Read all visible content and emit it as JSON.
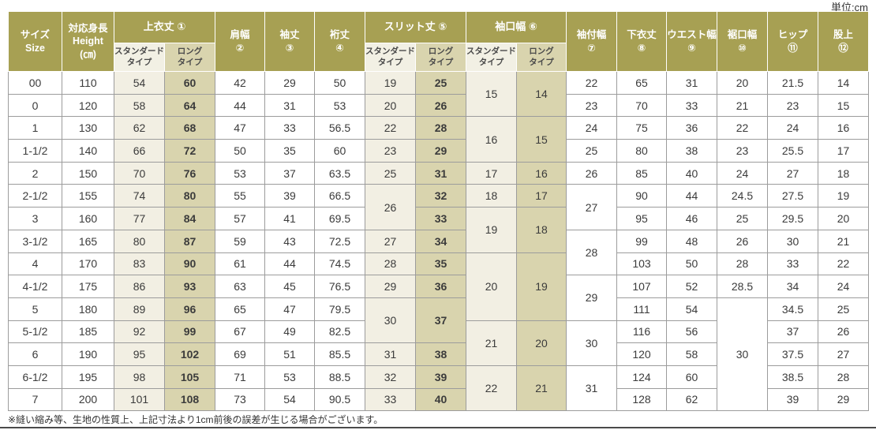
{
  "unit_label": "単位:cm",
  "footnote": "※縫い縮み等、生地の性質上、上記寸法より1cm前後の誤差が生じる場合がございます。",
  "colors": {
    "header_bg": "#a7a053",
    "header_text": "#ffffff",
    "standard_col_bg": "#f2efe3",
    "long_col_bg": "#d9d4ae",
    "body_border": "#9c9c9c",
    "body_text": "#3b3b3b"
  },
  "table": {
    "header": {
      "size": "サイズ\nSize",
      "height": "対応身長\nHeight\n(㎝)",
      "jacket": "上衣丈 ①",
      "shoulder": "肩幅\n②",
      "sleeve": "袖丈\n③",
      "yuki": "裄丈\n④",
      "slit": "スリット丈 ⑤",
      "cuff": "袖口幅 ⑥",
      "sodetsuke": "袖付幅\n⑦",
      "pants": "下衣丈\n⑧",
      "waist": "ウエスト幅\n⑨",
      "hem": "裾口幅\n⑩",
      "hip": "ヒップ\n⑪",
      "rise": "股上\n⑫",
      "sub_standard": "スタンダード\nタイプ",
      "sub_long": "ロング\nタイプ"
    },
    "columns": [
      "サイズ Size",
      "対応身長 Height(cm)",
      "上衣丈① スタンダードタイプ",
      "上衣丈① ロングタイプ",
      "肩幅②",
      "袖丈③",
      "裄丈④",
      "スリット丈⑤ スタンダードタイプ",
      "スリット丈⑤ ロングタイプ",
      "袖口幅⑥ スタンダードタイプ",
      "袖口幅⑥ ロングタイプ",
      "袖付幅⑦",
      "下衣丈⑧",
      "ウエスト幅⑨",
      "裾口幅⑩",
      "ヒップ⑪",
      "股上⑫"
    ],
    "rows": [
      [
        "00",
        "110",
        {
          "v": "54",
          "c": "std"
        },
        {
          "v": "60",
          "c": "longb"
        },
        "42",
        "29",
        "50",
        {
          "v": "19",
          "c": "std"
        },
        {
          "v": "25",
          "c": "longb"
        },
        {
          "v": "15",
          "c": "std",
          "rs": 2
        },
        {
          "v": "14",
          "c": "long",
          "rs": 2
        },
        "22",
        "65",
        "31",
        "20",
        "21.5",
        "14"
      ],
      [
        "0",
        "120",
        {
          "v": "58",
          "c": "std"
        },
        {
          "v": "64",
          "c": "longb"
        },
        "44",
        "31",
        "53",
        {
          "v": "20",
          "c": "std"
        },
        {
          "v": "26",
          "c": "longb"
        },
        "23",
        "70",
        "33",
        "21",
        "23",
        "15"
      ],
      [
        "1",
        "130",
        {
          "v": "62",
          "c": "std"
        },
        {
          "v": "68",
          "c": "longb"
        },
        "47",
        "33",
        "56.5",
        {
          "v": "22",
          "c": "std"
        },
        {
          "v": "28",
          "c": "longb"
        },
        {
          "v": "16",
          "c": "std",
          "rs": 2
        },
        {
          "v": "15",
          "c": "long",
          "rs": 2
        },
        "24",
        "75",
        "36",
        "22",
        "24",
        "16"
      ],
      [
        "1-1/2",
        "140",
        {
          "v": "66",
          "c": "std"
        },
        {
          "v": "72",
          "c": "longb"
        },
        "50",
        "35",
        "60",
        {
          "v": "23",
          "c": "std"
        },
        {
          "v": "29",
          "c": "longb"
        },
        "25",
        "80",
        "38",
        "23",
        "25.5",
        "17"
      ],
      [
        "2",
        "150",
        {
          "v": "70",
          "c": "std"
        },
        {
          "v": "76",
          "c": "longb"
        },
        "53",
        "37",
        "63.5",
        {
          "v": "25",
          "c": "std"
        },
        {
          "v": "31",
          "c": "longb"
        },
        {
          "v": "17",
          "c": "std"
        },
        {
          "v": "16",
          "c": "long"
        },
        "26",
        "85",
        "40",
        "24",
        "27",
        "18"
      ],
      [
        "2-1/2",
        "155",
        {
          "v": "74",
          "c": "std"
        },
        {
          "v": "80",
          "c": "longb"
        },
        "55",
        "39",
        "66.5",
        {
          "v": "26",
          "c": "std",
          "rs": 2
        },
        {
          "v": "32",
          "c": "longb"
        },
        {
          "v": "18",
          "c": "std"
        },
        {
          "v": "17",
          "c": "long"
        },
        {
          "v": "27",
          "rs": 2
        },
        "90",
        "44",
        "24.5",
        "27.5",
        "19"
      ],
      [
        "3",
        "160",
        {
          "v": "77",
          "c": "std"
        },
        {
          "v": "84",
          "c": "longb"
        },
        "57",
        "41",
        "69.5",
        {
          "v": "33",
          "c": "longb"
        },
        {
          "v": "19",
          "c": "std",
          "rs": 2
        },
        {
          "v": "18",
          "c": "long",
          "rs": 2
        },
        "95",
        "46",
        "25",
        "29.5",
        "20"
      ],
      [
        "3-1/2",
        "165",
        {
          "v": "80",
          "c": "std"
        },
        {
          "v": "87",
          "c": "longb"
        },
        "59",
        "43",
        "72.5",
        {
          "v": "27",
          "c": "std"
        },
        {
          "v": "34",
          "c": "longb"
        },
        {
          "v": "28",
          "rs": 2
        },
        "99",
        "48",
        "26",
        "30",
        "21"
      ],
      [
        "4",
        "170",
        {
          "v": "83",
          "c": "std"
        },
        {
          "v": "90",
          "c": "longb"
        },
        "61",
        "44",
        "74.5",
        {
          "v": "28",
          "c": "std"
        },
        {
          "v": "35",
          "c": "longb"
        },
        {
          "v": "20",
          "c": "std",
          "rs": 3
        },
        {
          "v": "19",
          "c": "long",
          "rs": 3
        },
        "103",
        "50",
        "28",
        "33",
        "22"
      ],
      [
        "4-1/2",
        "175",
        {
          "v": "86",
          "c": "std"
        },
        {
          "v": "93",
          "c": "longb"
        },
        "63",
        "45",
        "76.5",
        {
          "v": "29",
          "c": "std"
        },
        {
          "v": "36",
          "c": "longb"
        },
        {
          "v": "29",
          "rs": 2
        },
        "107",
        "52",
        "28.5",
        "34",
        "24"
      ],
      [
        "5",
        "180",
        {
          "v": "89",
          "c": "std"
        },
        {
          "v": "96",
          "c": "longb"
        },
        "65",
        "47",
        "79.5",
        {
          "v": "30",
          "c": "std",
          "rs": 2
        },
        {
          "v": "37",
          "c": "longb",
          "rs": 2
        },
        "111",
        "54",
        {
          "v": "30",
          "rs": 5
        },
        "34.5",
        "25"
      ],
      [
        "5-1/2",
        "185",
        {
          "v": "92",
          "c": "std"
        },
        {
          "v": "99",
          "c": "longb"
        },
        "67",
        "49",
        "82.5",
        {
          "v": "21",
          "c": "std",
          "rs": 2
        },
        {
          "v": "20",
          "c": "long",
          "rs": 2
        },
        {
          "v": "30",
          "rs": 2
        },
        "116",
        "56",
        "37",
        "26"
      ],
      [
        "6",
        "190",
        {
          "v": "95",
          "c": "std"
        },
        {
          "v": "102",
          "c": "longb"
        },
        "69",
        "51",
        "85.5",
        {
          "v": "31",
          "c": "std"
        },
        {
          "v": "38",
          "c": "longb"
        },
        "120",
        "58",
        "37.5",
        "27"
      ],
      [
        "6-1/2",
        "195",
        {
          "v": "98",
          "c": "std"
        },
        {
          "v": "105",
          "c": "longb"
        },
        "71",
        "53",
        "88.5",
        {
          "v": "32",
          "c": "std"
        },
        {
          "v": "39",
          "c": "longb"
        },
        {
          "v": "22",
          "c": "std",
          "rs": 2
        },
        {
          "v": "21",
          "c": "long",
          "rs": 2
        },
        {
          "v": "31",
          "rs": 2
        },
        "124",
        "60",
        "38.5",
        "28"
      ],
      [
        "7",
        "200",
        {
          "v": "101",
          "c": "std"
        },
        {
          "v": "108",
          "c": "longb"
        },
        "73",
        "54",
        "90.5",
        {
          "v": "33",
          "c": "std"
        },
        {
          "v": "40",
          "c": "longb"
        },
        "128",
        "62",
        "39",
        "29"
      ]
    ]
  }
}
